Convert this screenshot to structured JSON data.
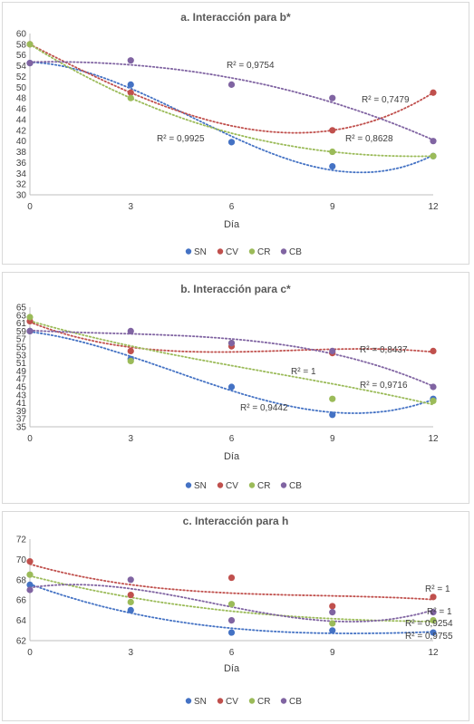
{
  "colors": {
    "SN": "#4472c4",
    "CV": "#c0504d",
    "CR": "#9bbb59",
    "CB": "#8064a2"
  },
  "chart_data": [
    {
      "type": "scatter",
      "title": "a. Interacción para b*",
      "xlabel": "Día",
      "ylabel": "",
      "x": [
        0,
        3,
        6,
        9,
        12
      ],
      "xticks": [
        0,
        3,
        6,
        9,
        12
      ],
      "ylim": [
        30,
        60
      ],
      "ytick_step": 2,
      "trendline": "polynomial",
      "legend_position": "bottom",
      "series": [
        {
          "name": "SN",
          "values": [
            54.5,
            50.5,
            39.8,
            35.3,
            37.2
          ]
        },
        {
          "name": "CV",
          "values": [
            58,
            49,
            null,
            42,
            49
          ]
        },
        {
          "name": "CR",
          "values": [
            58,
            48,
            null,
            38,
            37.2
          ]
        },
        {
          "name": "CB",
          "values": [
            54.5,
            55,
            50.5,
            48,
            40
          ]
        }
      ],
      "r2_labels": [
        "R² = 0,9754",
        "R² = 0,7479",
        "R² = 0,9925",
        "R² = 0,8628"
      ]
    },
    {
      "type": "scatter",
      "title": "b. Interacción para c*",
      "xlabel": "Día",
      "ylabel": "",
      "x": [
        0,
        3,
        6,
        9,
        12
      ],
      "xticks": [
        0,
        3,
        6,
        9,
        12
      ],
      "ylim": [
        35,
        65
      ],
      "ytick_step": 2,
      "ytick_start": 35,
      "trendline": "polynomial",
      "legend_position": "bottom",
      "series": [
        {
          "name": "SN",
          "values": [
            59,
            52,
            45,
            38,
            42
          ]
        },
        {
          "name": "CV",
          "values": [
            61.5,
            54,
            55.2,
            53.5,
            54
          ]
        },
        {
          "name": "CR",
          "values": [
            62.5,
            51.5,
            56,
            42,
            41.5
          ]
        },
        {
          "name": "CB",
          "values": [
            59,
            59,
            56,
            54,
            45
          ]
        }
      ],
      "r2_labels": [
        "R² = 0,8437",
        "R² = 1",
        "R² = 0,9716",
        "R² = 0,9442"
      ]
    },
    {
      "type": "scatter",
      "title": "c. Interacción para h",
      "xlabel": "Día",
      "ylabel": "",
      "x": [
        0,
        3,
        6,
        9,
        12
      ],
      "xticks": [
        0,
        3,
        6,
        9,
        12
      ],
      "ylim": [
        62,
        72
      ],
      "ytick_step": 2,
      "trendline": "polynomial",
      "legend_position": "bottom",
      "series": [
        {
          "name": "SN",
          "values": [
            67.5,
            65,
            62.8,
            63,
            62.8
          ]
        },
        {
          "name": "CV",
          "values": [
            69.8,
            66.5,
            68.2,
            65.4,
            66.3
          ]
        },
        {
          "name": "CR",
          "values": [
            68.5,
            65.8,
            65.6,
            63.7,
            64
          ]
        },
        {
          "name": "CB",
          "values": [
            67,
            68,
            64,
            64.8,
            64.8
          ]
        }
      ],
      "r2_labels": [
        "R² = 1",
        "R² = 1",
        "R² = 0,9254",
        "R² = 0,9755"
      ]
    }
  ]
}
